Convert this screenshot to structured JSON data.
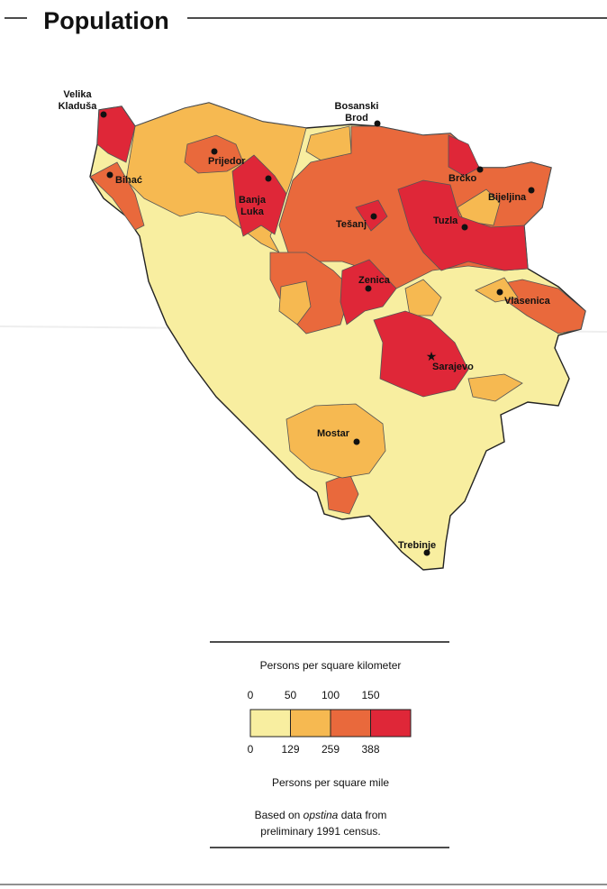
{
  "header": {
    "title": "Population"
  },
  "places": [
    {
      "label": [
        "Velika",
        "Kladuša"
      ]
    },
    {
      "label": [
        "Bosanski",
        "Brod"
      ]
    },
    {
      "label": [
        "Prijedor"
      ]
    },
    {
      "label": [
        "Bihać"
      ]
    },
    {
      "label": [
        "Banja",
        "Luka"
      ]
    },
    {
      "label": [
        "Tešanj"
      ]
    },
    {
      "label": [
        "Brčko"
      ]
    },
    {
      "label": [
        "Bijeljina"
      ]
    },
    {
      "label": [
        "Tuzla"
      ]
    },
    {
      "label": [
        "Zenica"
      ]
    },
    {
      "label": [
        "Vlasenica"
      ]
    },
    {
      "label": [
        "Sarajevo"
      ]
    },
    {
      "label": [
        "Mostar"
      ]
    },
    {
      "label": [
        "Trebinje"
      ]
    }
  ],
  "legend": {
    "title_top": "Persons per square kilometer",
    "top_ticks": [
      0,
      50,
      100,
      150
    ],
    "bottom_ticks": [
      0,
      129,
      259,
      388
    ],
    "title_bottom": "Persons per square mile",
    "colors": [
      "#f8eea0",
      "#f6b951",
      "#e9693c",
      "#df2738"
    ]
  },
  "note": {
    "prefix": "Based on ",
    "italic": "opstina",
    "suffix": " data from",
    "line2": "preliminary 1991 census."
  }
}
